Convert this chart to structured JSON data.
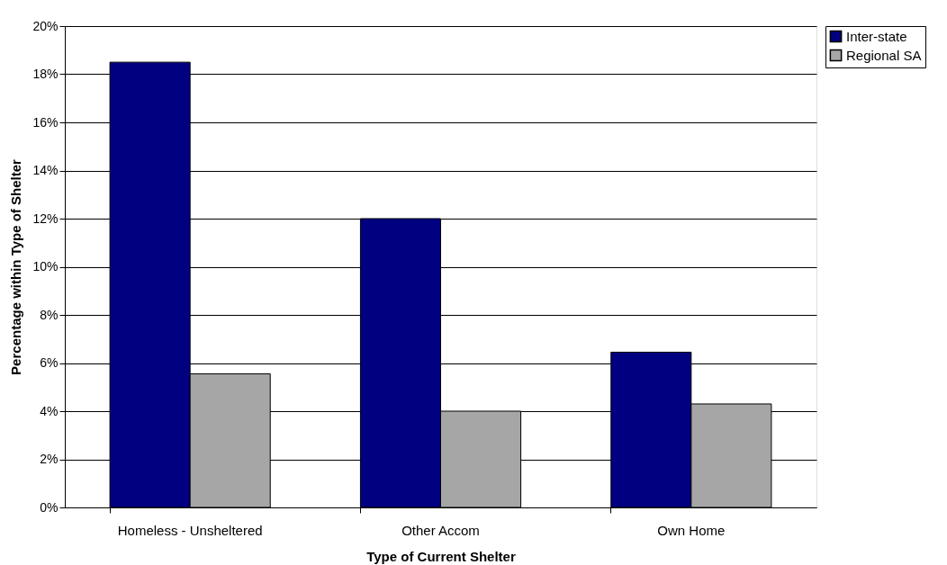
{
  "chart_data": {
    "type": "bar",
    "xlabel": "Type of Current Shelter",
    "ylabel": "Percentage within Type of Shelter",
    "categories": [
      "Homeless - Unsheltered",
      "Other Accom",
      "Own Home"
    ],
    "series": [
      {
        "name": "Inter-state",
        "color": "#000080",
        "values": [
          18.5,
          12.0,
          6.45
        ]
      },
      {
        "name": "Regional SA",
        "color": "#a6a6a6",
        "values": [
          5.55,
          4.0,
          4.3
        ]
      }
    ],
    "ylim": [
      0,
      20
    ],
    "yticks": [
      {
        "value": 0,
        "label": "0%"
      },
      {
        "value": 2,
        "label": "2%"
      },
      {
        "value": 4,
        "label": "4%"
      },
      {
        "value": 6,
        "label": "6%"
      },
      {
        "value": 8,
        "label": "8%"
      },
      {
        "value": 10,
        "label": "10%"
      },
      {
        "value": 12,
        "label": "12%"
      },
      {
        "value": 14,
        "label": "14%"
      },
      {
        "value": 16,
        "label": "16%"
      },
      {
        "value": 18,
        "label": "18%"
      },
      {
        "value": 20,
        "label": "20%"
      }
    ],
    "grid": "y",
    "legend": "right"
  }
}
